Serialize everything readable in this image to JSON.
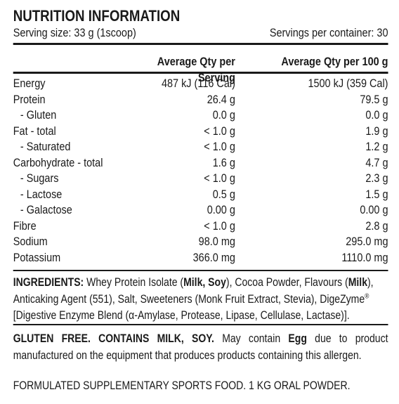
{
  "title": "NUTRITION INFORMATION",
  "serving_size": "Serving size: 33 g (1scoop)",
  "servings_per_container": "Servings per container: 30",
  "table": {
    "headers": [
      "Average Qty per Serving",
      "Average Qty per 100 g"
    ],
    "rows": [
      {
        "label": "Energy",
        "per_serving": "487 kJ (116 Cal)",
        "per_100g": "1500 kJ (359 Cal)",
        "indent": false
      },
      {
        "label": "Protein",
        "per_serving": "26.4 g",
        "per_100g": "79.5 g",
        "indent": false
      },
      {
        "label": "- Gluten",
        "per_serving": "0.0 g",
        "per_100g": "0.0 g",
        "indent": true
      },
      {
        "label": "Fat - total",
        "per_serving": "< 1.0 g",
        "per_100g": "1.9 g",
        "indent": false
      },
      {
        "label": "- Saturated",
        "per_serving": "< 1.0 g",
        "per_100g": "1.2 g",
        "indent": true
      },
      {
        "label": "Carbohydrate - total",
        "per_serving": "1.6 g",
        "per_100g": "4.7 g",
        "indent": false
      },
      {
        "label": "- Sugars",
        "per_serving": "< 1.0 g",
        "per_100g": "2.3 g",
        "indent": true
      },
      {
        "label": "- Lactose",
        "per_serving": "0.5 g",
        "per_100g": "1.5 g",
        "indent": true
      },
      {
        "label": "- Galactose",
        "per_serving": "0.00 g",
        "per_100g": "0.00 g",
        "indent": true
      },
      {
        "label": "Fibre",
        "per_serving": "< 1.0 g",
        "per_100g": "2.8 g",
        "indent": false
      },
      {
        "label": "Sodium",
        "per_serving": "98.0 mg",
        "per_100g": "295.0 mg",
        "indent": false
      },
      {
        "label": "Potassium",
        "per_serving": "366.0 mg",
        "per_100g": "1110.0 mg",
        "indent": false
      }
    ]
  },
  "ingredients": [
    {
      "text": "INGREDIENTS:",
      "style": "bold"
    },
    {
      "text": " Whey Protein Isolate (",
      "style": "normal"
    },
    {
      "text": "Milk, Soy",
      "style": "bold"
    },
    {
      "text": "), Cocoa Powder, Flavours (",
      "style": "normal"
    },
    {
      "text": "Milk",
      "style": "bold"
    },
    {
      "text": "), Anticaking Agent (551), Salt, Sweeteners (Monk Fruit Extract, Stevia), DigeZyme",
      "style": "normal"
    },
    {
      "text": "®",
      "style": "sup"
    },
    {
      "text": " [Digestive Enzyme Blend (α-Amylase, Protease, Lipase, Cellulase, Lactase)].",
      "style": "normal"
    }
  ],
  "allergens": [
    {
      "text": "GLUTEN FREE. CONTAINS MILK, SOY.",
      "style": "bold"
    },
    {
      "text": " May contain ",
      "style": "normal"
    },
    {
      "text": "Egg",
      "style": "bold"
    },
    {
      "text": " due to product manufactured on the equipment that produces products containing this allergen.",
      "style": "normal"
    }
  ],
  "footer": "FORMULATED SUPPLEMENTARY SPORTS FOOD. 1 KG ORAL POWDER."
}
